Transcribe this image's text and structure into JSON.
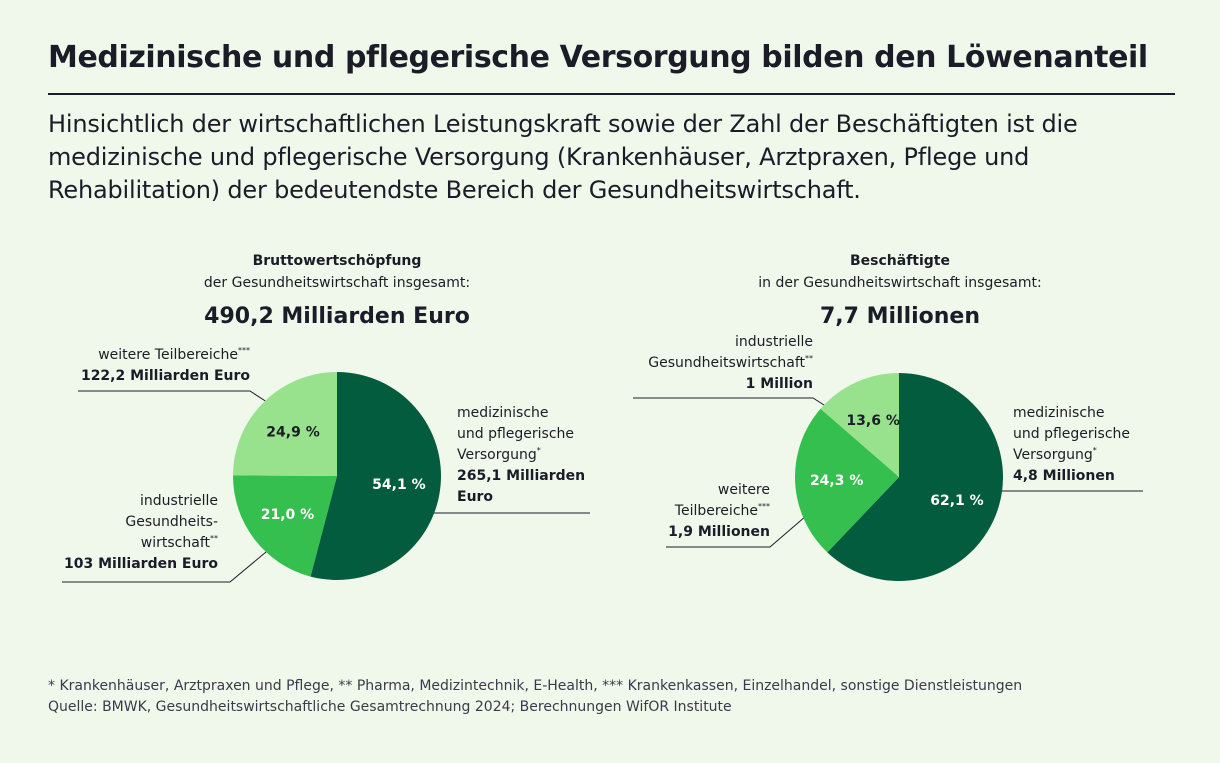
{
  "title": "Medizinische und pflegerische Versorgung bilden den Löwenanteil",
  "intro": "Hinsichtlich der wirtschaftlichen Leistungskraft sowie der Zahl der Beschäftigten ist die medizinische und pflegerische Versorgung (Krankenhäuser, Arztpraxen, Pflege und Rehabilitation) der bedeutendste Bereich der Gesundheitswirtschaft.",
  "colors": {
    "dark": "#025c3d",
    "mid": "#35bf4f",
    "light": "#98e28d",
    "background": "#eff8ea"
  },
  "chart_data": [
    {
      "type": "pie",
      "title": "Bruttowertschöpfung",
      "subtitle": "der Gesundheitswirtschaft insgesamt:",
      "total": "490,2 Milliarden Euro",
      "slices": [
        {
          "name": "medizinische und pflegerische Versorgung",
          "label_lines": [
            "medizinische",
            "und pflegerische",
            "Versorgung"
          ],
          "sup": "*",
          "amount": "265,1 Milliarden Euro",
          "amount_lines": [
            "265,1 Milliarden",
            "Euro"
          ],
          "value": 54.1,
          "value_label": "54,1 %",
          "color": "#025c3d"
        },
        {
          "name": "industrielle Gesundheitswirtschaft",
          "label_lines": [
            "industrielle",
            "Gesundheits-",
            "wirtschaft"
          ],
          "sup": "**",
          "amount": "103 Milliarden Euro",
          "amount_lines": [
            "103 Milliarden Euro"
          ],
          "value": 21.0,
          "value_label": "21,0 %",
          "color": "#35bf4f"
        },
        {
          "name": "weitere Teilbereiche",
          "label_lines": [
            "weitere Teilbereiche"
          ],
          "sup": "***",
          "amount": "122,2 Milliarden Euro",
          "amount_lines": [
            "122,2 Milliarden Euro"
          ],
          "value": 24.9,
          "value_label": "24,9 %",
          "color": "#98e28d"
        }
      ]
    },
    {
      "type": "pie",
      "title": "Beschäftigte",
      "subtitle": "in der Gesundheitswirtschaft insgesamt:",
      "total": "7,7 Millionen",
      "slices": [
        {
          "name": "medizinische und pflegerische Versorgung",
          "label_lines": [
            "medizinische",
            "und pflegerische",
            "Versorgung"
          ],
          "sup": "*",
          "amount": "4,8 Millionen",
          "amount_lines": [
            "4,8 Millionen"
          ],
          "value": 62.1,
          "value_label": "62,1 %",
          "color": "#025c3d"
        },
        {
          "name": "weitere Teilbereiche",
          "label_lines": [
            "weitere",
            "Teilbereiche"
          ],
          "sup": "***",
          "amount": "1,9 Millionen",
          "amount_lines": [
            "1,9 Millionen"
          ],
          "value": 24.3,
          "value_label": "24,3 %",
          "color": "#35bf4f"
        },
        {
          "name": "industrielle Gesundheitswirtschaft",
          "label_lines": [
            "industrielle",
            "Gesundheitswirtschaft"
          ],
          "sup": "**",
          "amount": "1 Million",
          "amount_lines": [
            "1 Million"
          ],
          "value": 13.6,
          "value_label": "13,6 %",
          "color": "#98e28d"
        }
      ]
    }
  ],
  "footnotes": [
    "* Krankenhäuser, Arztpraxen und Pflege, ** Pharma, Medizintechnik, E-Health, *** Krankenkassen, Einzelhandel, sonstige Dienstleistungen",
    "Quelle: BMWK, Gesundheitswirtschaftliche Gesamtrechnung 2024; Berechnungen WifOR Institute"
  ]
}
